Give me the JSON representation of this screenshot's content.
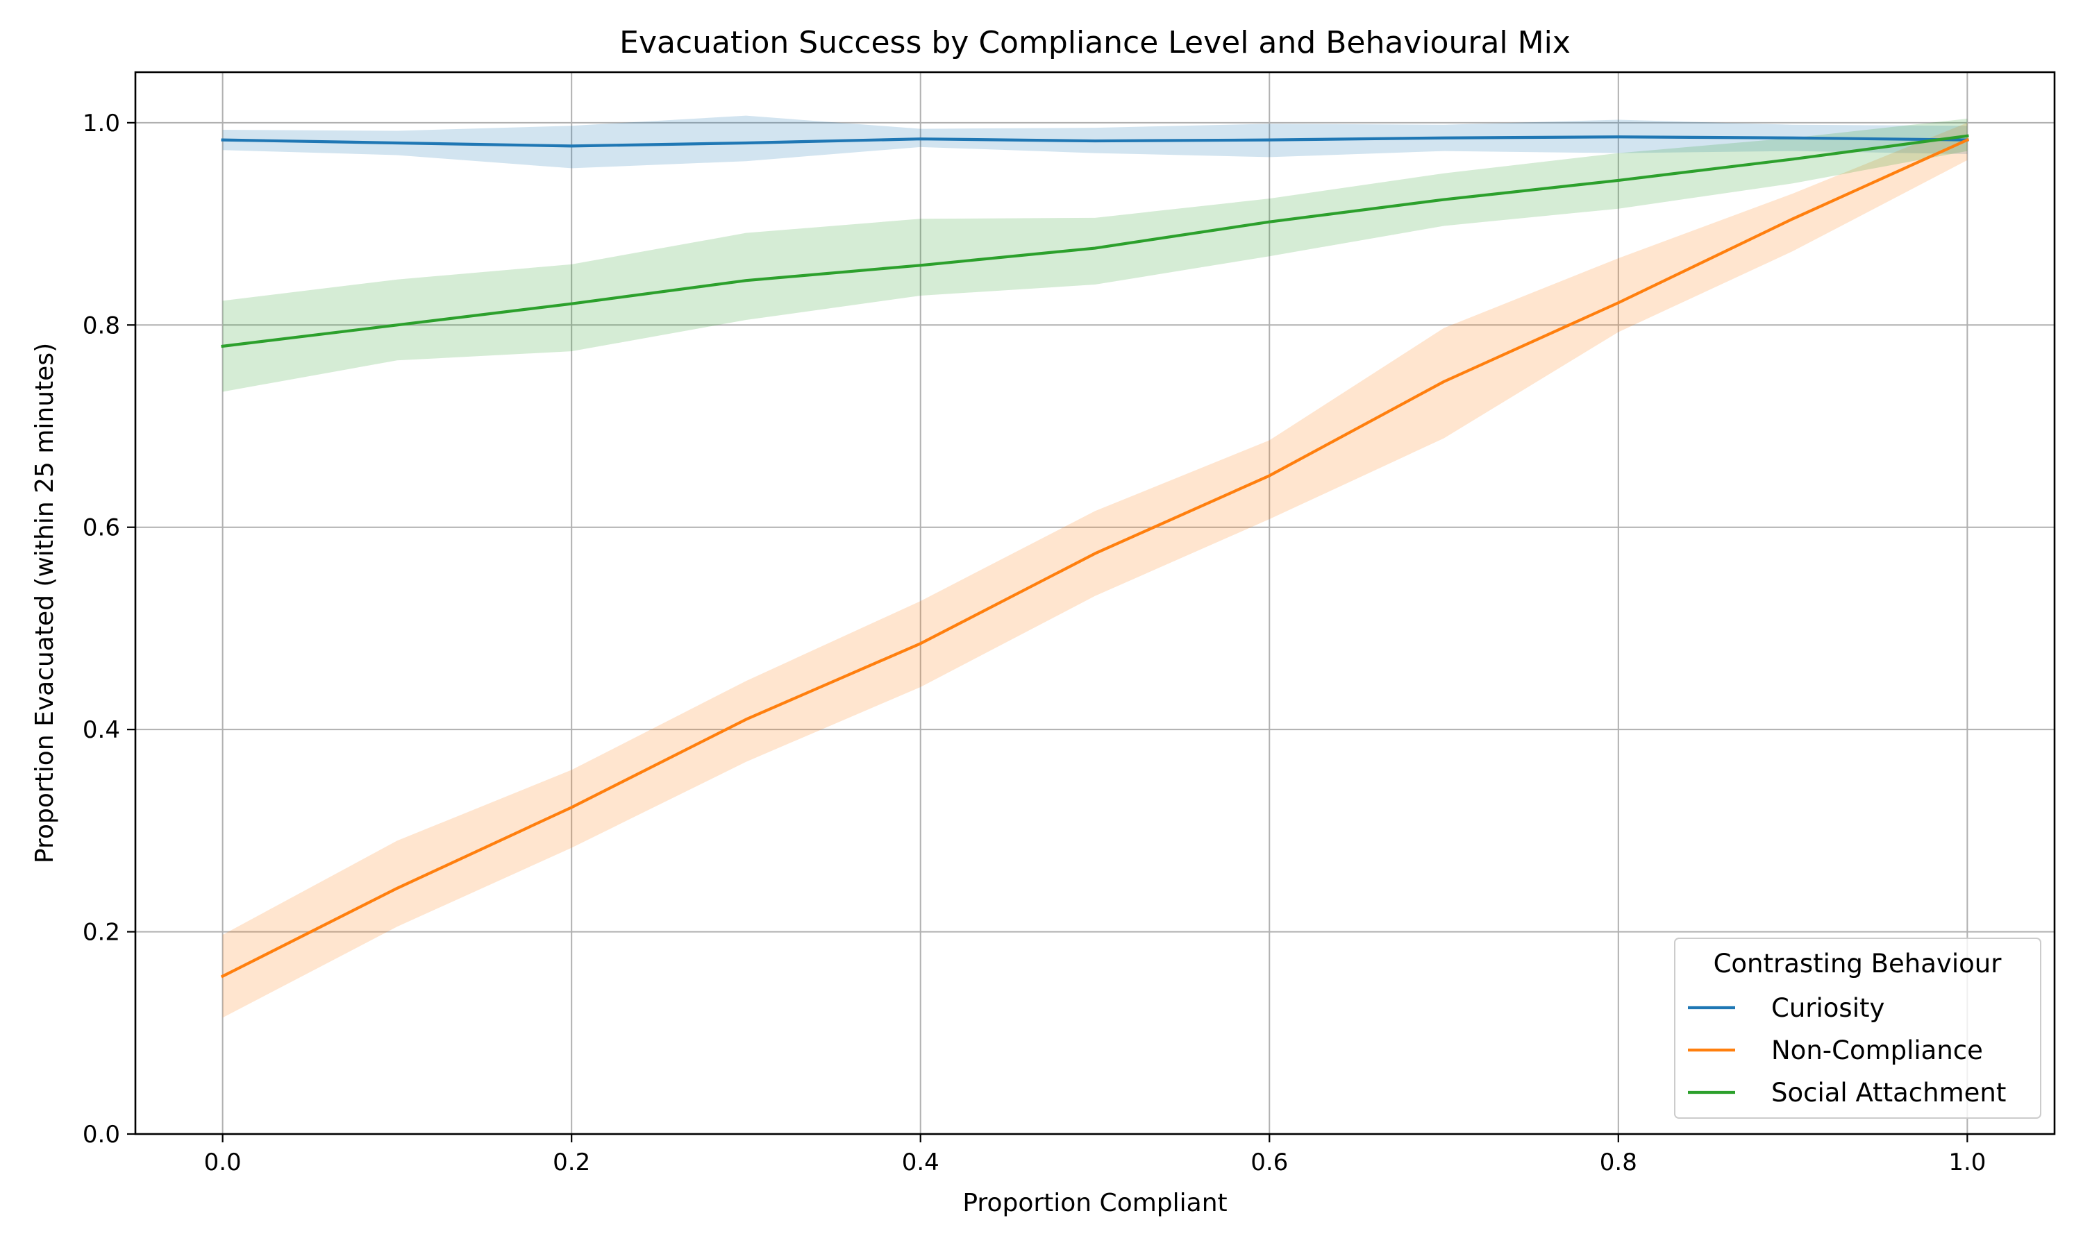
{
  "chart_data": {
    "type": "line",
    "title": "Evacuation Success by Compliance Level and Behavioural Mix",
    "xlabel": "Proportion Compliant",
    "ylabel": "Proportion Evacuated (within 25 minutes)",
    "xlim": [
      -0.05,
      1.05
    ],
    "ylim": [
      0.0,
      1.05
    ],
    "xticks": [
      0.0,
      0.2,
      0.4,
      0.6,
      0.8,
      1.0
    ],
    "xtick_labels": [
      "0.0",
      "0.2",
      "0.4",
      "0.6",
      "0.8",
      "1.0"
    ],
    "yticks": [
      0.0,
      0.2,
      0.4,
      0.6,
      0.8,
      1.0
    ],
    "ytick_labels": [
      "0.0",
      "0.2",
      "0.4",
      "0.6",
      "0.8",
      "1.0"
    ],
    "grid": true,
    "legend": {
      "title": "Contrasting Behaviour",
      "placement": "lower-right"
    },
    "x": [
      0.0,
      0.1,
      0.2,
      0.3,
      0.4,
      0.5,
      0.6,
      0.7,
      0.8,
      0.9,
      1.0
    ],
    "series": [
      {
        "name": "Curiosity",
        "color": "#1f77b4",
        "band_color": "#1f77b4",
        "values": [
          0.983,
          0.98,
          0.977,
          0.98,
          0.984,
          0.982,
          0.983,
          0.985,
          0.986,
          0.985,
          0.983
        ],
        "lower": [
          0.973,
          0.968,
          0.955,
          0.962,
          0.976,
          0.97,
          0.966,
          0.972,
          0.97,
          0.972,
          0.969
        ],
        "upper": [
          0.993,
          0.992,
          0.997,
          1.007,
          0.994,
          0.995,
          0.999,
          0.998,
          1.003,
          0.998,
          0.997
        ]
      },
      {
        "name": "Non-Compliance",
        "color": "#ff7f0e",
        "band_color": "#ff7f0e",
        "values": [
          0.156,
          0.243,
          0.323,
          0.41,
          0.485,
          0.574,
          0.651,
          0.744,
          0.822,
          0.905,
          0.983
        ],
        "lower": [
          0.115,
          0.205,
          0.283,
          0.368,
          0.442,
          0.532,
          0.608,
          0.688,
          0.793,
          0.873,
          0.963
        ],
        "upper": [
          0.197,
          0.29,
          0.36,
          0.448,
          0.527,
          0.616,
          0.686,
          0.797,
          0.866,
          0.93,
          1.0
        ]
      },
      {
        "name": "Social Attachment",
        "color": "#2ca02c",
        "band_color": "#2ca02c",
        "values": [
          0.779,
          0.8,
          0.821,
          0.844,
          0.859,
          0.876,
          0.902,
          0.924,
          0.943,
          0.964,
          0.987
        ],
        "lower": [
          0.734,
          0.765,
          0.774,
          0.805,
          0.829,
          0.84,
          0.868,
          0.898,
          0.915,
          0.94,
          0.972
        ],
        "upper": [
          0.824,
          0.845,
          0.86,
          0.891,
          0.905,
          0.906,
          0.925,
          0.95,
          0.97,
          0.985,
          1.004
        ]
      }
    ]
  }
}
